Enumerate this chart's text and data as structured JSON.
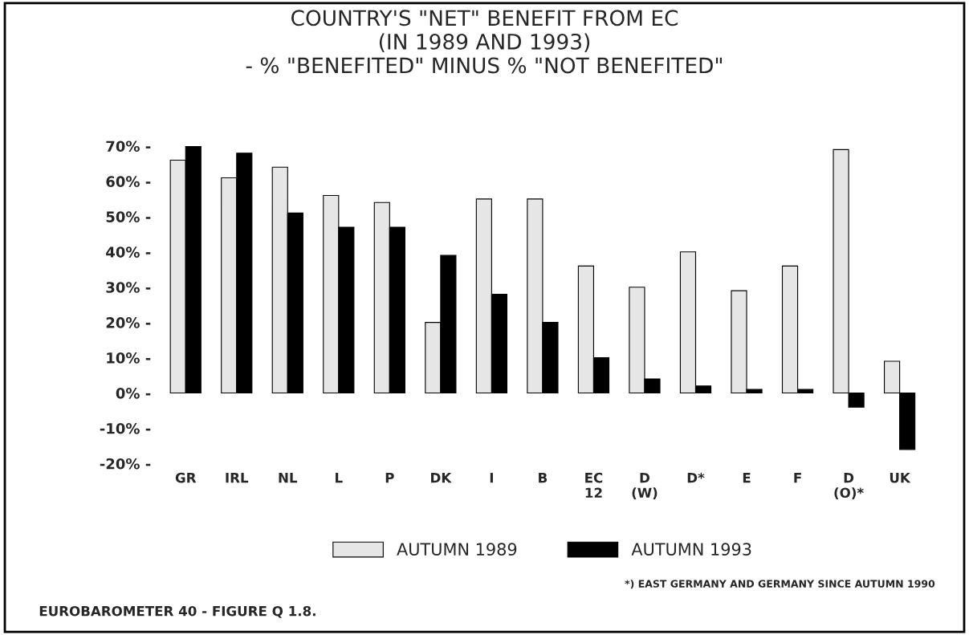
{
  "chart_data": {
    "type": "bar",
    "title": "COUNTRY'S \"NET\" BENEFIT FROM EC\n(IN 1989 AND 1993)\n- % \"BENEFITED\" MINUS % \"NOT BENEFITED\"",
    "categories": [
      "GR",
      "IRL",
      "NL",
      "L",
      "P",
      "DK",
      "I",
      "B",
      "EC\n12",
      "D\n(W)",
      "D*",
      "E",
      "F",
      "D\n(O)*",
      "UK"
    ],
    "series": [
      {
        "name": "AUTUMN 1989",
        "color": "#e6e6e6",
        "values": [
          66,
          61,
          64,
          56,
          54,
          20,
          55,
          55,
          36,
          30,
          40,
          29,
          36,
          69,
          9
        ]
      },
      {
        "name": "AUTUMN 1993",
        "color": "#000000",
        "values": [
          70,
          68,
          51,
          47,
          47,
          39,
          28,
          20,
          10,
          4,
          2,
          1,
          1,
          -4,
          -16
        ]
      }
    ],
    "ylim": [
      -20,
      70
    ],
    "yticks": [
      {
        "value": -20,
        "label": "-20% -"
      },
      {
        "value": -10,
        "label": "-10% -"
      },
      {
        "value": 0,
        "label": "0% -"
      },
      {
        "value": 10,
        "label": "10% -"
      },
      {
        "value": 20,
        "label": "20% -"
      },
      {
        "value": 30,
        "label": "30% -"
      },
      {
        "value": 40,
        "label": "40% -"
      },
      {
        "value": 50,
        "label": "50% -"
      },
      {
        "value": 60,
        "label": "60% -"
      },
      {
        "value": 70,
        "label": "70% -"
      }
    ],
    "legend": "bottom",
    "grid": false,
    "annotations": [
      "*) EAST GERMANY AND GERMANY SINCE AUTUMN 1990",
      "EUROBAROMETER 40 - FIGURE Q 1.8."
    ]
  }
}
